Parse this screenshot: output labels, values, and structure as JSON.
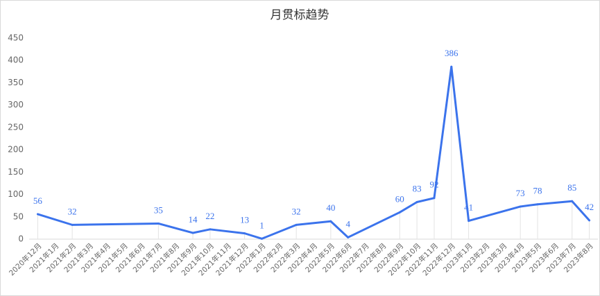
{
  "chart_data": {
    "type": "line",
    "title": "月贯标趋势",
    "categories": [
      "2020年12月",
      "2021年1月",
      "2021年2月",
      "2021年3月",
      "2021年4月",
      "2021年5月",
      "2021年6月",
      "2021年7月",
      "2021年8月",
      "2021年9月",
      "2021年10月",
      "2021年11月",
      "2021年12月",
      "2022年1月",
      "2022年2月",
      "2022年3月",
      "2022年4月",
      "2022年5月",
      "2022年6月",
      "2022年7月",
      "2022年8月",
      "2022年9月",
      "2022年10月",
      "2022年11月",
      "2022年12月",
      "2023年1月",
      "2023年2月",
      "2023年3月",
      "2023年4月",
      "2023年5月",
      "2023年6月",
      "2023年7月",
      "2023年8月"
    ],
    "values": [
      56,
      null,
      32,
      null,
      null,
      null,
      null,
      35,
      null,
      14,
      22,
      null,
      13,
      1,
      null,
      32,
      null,
      40,
      4,
      null,
      null,
      60,
      83,
      92,
      386,
      41,
      null,
      null,
      73,
      78,
      null,
      85,
      42
    ],
    "color": "#3b73ec",
    "ylim": [
      0,
      450
    ],
    "yticks": [
      0,
      50,
      100,
      150,
      200,
      250,
      300,
      350,
      400,
      450
    ],
    "grid": false
  }
}
